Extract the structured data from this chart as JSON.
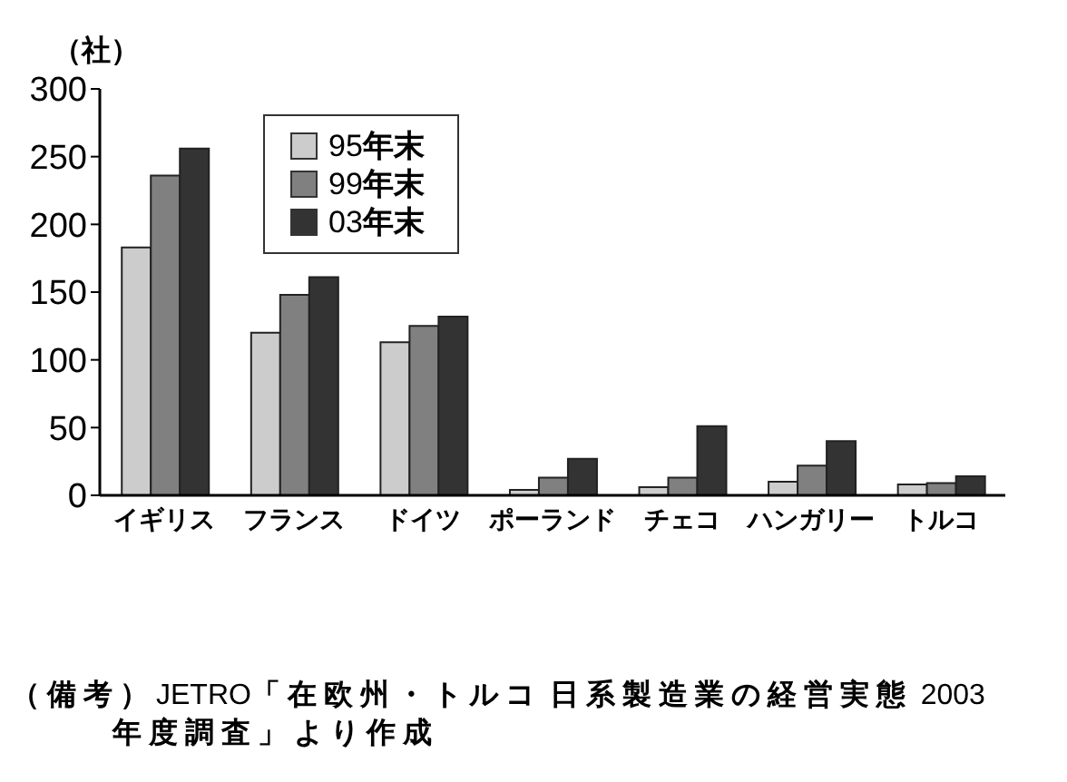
{
  "chart_data": {
    "type": "bar",
    "ylabel": "（社）",
    "categories": [
      "イギリス",
      "フランス",
      "ドイツ",
      "ポーランド",
      "チェコ",
      "ハンガリー",
      "トルコ"
    ],
    "series": [
      {
        "name": "95年末",
        "color": "#cccccc",
        "values": [
          183,
          120,
          113,
          4,
          6,
          10,
          8
        ]
      },
      {
        "name": "99年末",
        "color": "#808080",
        "values": [
          236,
          148,
          125,
          13,
          13,
          22,
          9
        ]
      },
      {
        "name": "03年末",
        "color": "#333333",
        "values": [
          256,
          161,
          132,
          27,
          51,
          40,
          14
        ]
      }
    ],
    "ylim": [
      0,
      300
    ],
    "yticks": [
      0,
      50,
      100,
      150,
      200,
      250,
      300
    ],
    "legend": "top left",
    "annotations": [
      "（備考）JETRO「在欧州・トルコ 日系製造業の経営実態 2003年度調査」より作成"
    ]
  }
}
